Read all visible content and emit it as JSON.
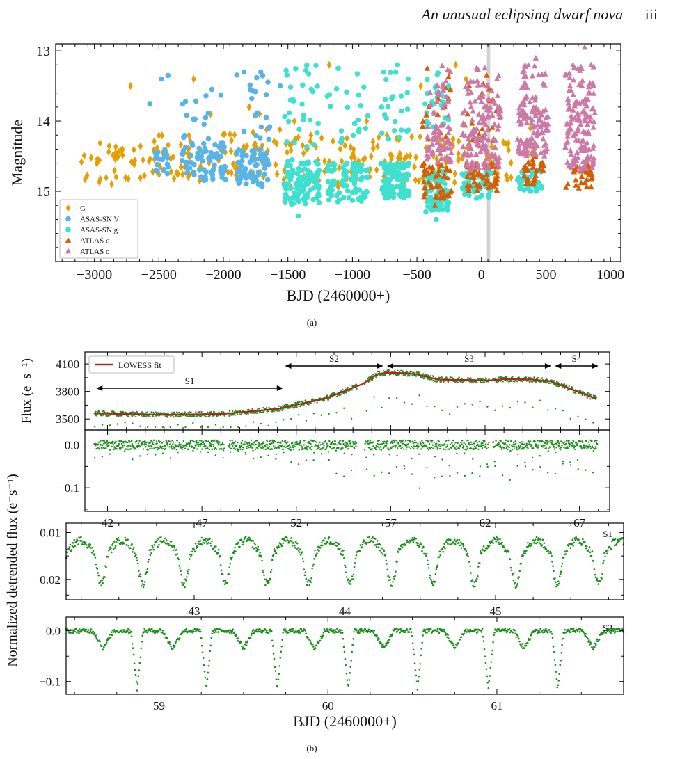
{
  "page_header": {
    "title": "An unusual eclipsing dwarf nova",
    "page_number": "iii"
  },
  "chart_data": [
    {
      "id": "a",
      "caption": "(a)",
      "type": "scatter",
      "xlabel": "BJD (2460000+)",
      "ylabel": "Magnitude",
      "xlim": [
        -3300,
        1080
      ],
      "ylim": [
        16.0,
        12.9
      ],
      "y_inverted": true,
      "xticks": [
        -3000,
        -2500,
        -2000,
        -1500,
        -1000,
        -500,
        0,
        500,
        1000
      ],
      "xtick_labels": [
        "−3000",
        "−2500",
        "−2000",
        "−1500",
        "−1000",
        "−500",
        "0",
        "500",
        "1000"
      ],
      "yticks": [
        13,
        14,
        15
      ],
      "ytick_labels": [
        "13",
        "14",
        "15"
      ],
      "shaded_band_x": [
        42,
        68
      ],
      "legend": {
        "placement": "bottom-left"
      },
      "series": [
        {
          "name": "G",
          "marker": "diamond",
          "color": "#e69f00",
          "groups": [
            {
              "x": [
                -3150,
                -2700
              ],
              "y": [
                14.3,
                14.9
              ],
              "n": 30
            },
            {
              "x": [
                -2700,
                -2050
              ],
              "y": [
                14.2,
                14.85
              ],
              "n": 50
            },
            {
              "x": [
                -2050,
                -1550
              ],
              "y": [
                14.1,
                14.8
              ],
              "n": 45
            },
            {
              "x": [
                -1550,
                -850
              ],
              "y": [
                14.2,
                14.95
              ],
              "n": 60
            },
            {
              "x": [
                -850,
                -150
              ],
              "y": [
                14.2,
                14.9
              ],
              "n": 55
            },
            {
              "x": [
                -150,
                450
              ],
              "y": [
                14.3,
                14.9
              ],
              "n": 30
            }
          ],
          "outliers": [
            [
              -2720,
              13.5
            ],
            [
              -2230,
              13.4
            ],
            [
              -2100,
              13.9
            ],
            [
              -1800,
              13.8
            ],
            [
              -1720,
              13.9
            ],
            [
              -1450,
              14.0
            ],
            [
              -1180,
              13.2
            ],
            [
              -890,
              14.0
            ],
            [
              -470,
              13.5
            ],
            [
              -250,
              13.3
            ],
            [
              -200,
              13.2
            ],
            [
              -120,
              13.4
            ],
            [
              380,
              14.1
            ]
          ]
        },
        {
          "name": "ASAS-SN V",
          "marker": "circle",
          "color": "#56b4e9",
          "groups": [
            {
              "x": [
                -2550,
                -2420
              ],
              "y": [
                14.4,
                14.75
              ],
              "n": 20
            },
            {
              "x": [
                -2320,
                -1980
              ],
              "y": [
                14.3,
                14.85
              ],
              "n": 70
            },
            {
              "x": [
                -2320,
                -1980
              ],
              "y": [
                13.5,
                14.3
              ],
              "n": 15
            },
            {
              "x": [
                -1900,
                -1640
              ],
              "y": [
                14.4,
                14.95
              ],
              "n": 70
            },
            {
              "x": [
                -1900,
                -1640
              ],
              "y": [
                13.3,
                14.3
              ],
              "n": 20
            }
          ],
          "outliers": [
            [
              -2570,
              13.75
            ],
            [
              -2480,
              13.4
            ],
            [
              -2430,
              13.35
            ],
            [
              -1840,
              13.3
            ],
            [
              -1710,
              13.3
            ],
            [
              -1560,
              13.5
            ]
          ]
        },
        {
          "name": "ASAS-SN g",
          "marker": "circle",
          "color": "#40e0d0",
          "groups": [
            {
              "x": [
                -1530,
                -1250
              ],
              "y": [
                14.55,
                15.2
              ],
              "n": 110
            },
            {
              "x": [
                -1530,
                -1250
              ],
              "y": [
                13.2,
                14.4
              ],
              "n": 30
            },
            {
              "x": [
                -1200,
                -880
              ],
              "y": [
                14.6,
                15.15
              ],
              "n": 90
            },
            {
              "x": [
                -1200,
                -880
              ],
              "y": [
                13.3,
                14.4
              ],
              "n": 20
            },
            {
              "x": [
                -780,
                -560
              ],
              "y": [
                14.6,
                15.1
              ],
              "n": 110
            },
            {
              "x": [
                -780,
                -560
              ],
              "y": [
                13.3,
                14.3
              ],
              "n": 25
            },
            {
              "x": [
                -440,
                -250
              ],
              "y": [
                14.7,
                15.3
              ],
              "n": 80
            },
            {
              "x": [
                -440,
                -250
              ],
              "y": [
                13.3,
                14.2
              ],
              "n": 25
            },
            {
              "x": [
                -150,
                100
              ],
              "y": [
                14.7,
                15.1
              ],
              "n": 60
            },
            {
              "x": [
                280,
                470
              ],
              "y": [
                14.7,
                15.0
              ],
              "n": 40
            }
          ],
          "outliers": [
            [
              -1420,
              15.35
            ],
            [
              -350,
              15.4
            ],
            [
              -650,
              13.2
            ],
            [
              -1110,
              13.25
            ]
          ]
        },
        {
          "name": "ATLAS c",
          "marker": "triangle",
          "color": "#d55e00",
          "groups": [
            {
              "x": [
                -460,
                -230
              ],
              "y": [
                14.6,
                15.1
              ],
              "n": 45
            },
            {
              "x": [
                -460,
                -230
              ],
              "y": [
                13.2,
                14.3
              ],
              "n": 15
            },
            {
              "x": [
                -130,
                130
              ],
              "y": [
                14.6,
                15.0
              ],
              "n": 55
            },
            {
              "x": [
                -130,
                130
              ],
              "y": [
                13.4,
                14.3
              ],
              "n": 20
            },
            {
              "x": [
                320,
                480
              ],
              "y": [
                14.5,
                14.9
              ],
              "n": 30
            },
            {
              "x": [
                650,
                860
              ],
              "y": [
                14.6,
                15.0
              ],
              "n": 30
            }
          ],
          "outliers": [
            [
              -420,
              13.25
            ],
            [
              -360,
              15.2
            ],
            [
              40,
              13.35
            ]
          ]
        },
        {
          "name": "ATLAS o",
          "marker": "triangle",
          "color": "#cc79a7",
          "groups": [
            {
              "x": [
                -430,
                -230
              ],
              "y": [
                14.0,
                14.6
              ],
              "n": 55
            },
            {
              "x": [
                -400,
                -250
              ],
              "y": [
                13.2,
                14.0
              ],
              "n": 20
            },
            {
              "x": [
                -150,
                150
              ],
              "y": [
                13.8,
                14.7
              ],
              "n": 110
            },
            {
              "x": [
                -130,
                140
              ],
              "y": [
                13.2,
                13.8
              ],
              "n": 30
            },
            {
              "x": [
                280,
                520
              ],
              "y": [
                13.8,
                14.5
              ],
              "n": 100
            },
            {
              "x": [
                300,
                500
              ],
              "y": [
                13.1,
                13.8
              ],
              "n": 30
            },
            {
              "x": [
                650,
                880
              ],
              "y": [
                13.7,
                14.7
              ],
              "n": 110
            },
            {
              "x": [
                650,
                870
              ],
              "y": [
                13.2,
                13.7
              ],
              "n": 30
            }
          ],
          "outliers": [
            [
              800,
              12.95
            ],
            [
              850,
              13.2
            ],
            [
              -240,
              13.3
            ],
            [
              120,
              13.4
            ]
          ]
        }
      ]
    },
    {
      "id": "b",
      "caption": "(b)",
      "type": "scatter",
      "xlabel": "BJD (2460000+)",
      "ylabel_top": "Flux (e⁻s⁻¹)",
      "ylabel_shared": "Normalized detrended flux  (e⁻s⁻¹)",
      "panels": [
        {
          "name": "raw-flux",
          "xlim": [
            40.8,
            68.6
          ],
          "ylim": [
            3380,
            4230
          ],
          "yticks": [
            3500,
            3800,
            4100
          ],
          "ytick_labels": [
            "3500",
            "3800",
            "4100"
          ],
          "legend": {
            "label": "LOWESS fit",
            "color": "#b22222",
            "placement": "top-left"
          },
          "lowess_fit": {
            "x": [
              41.3,
              45.0,
              48.2,
              51.0,
              53.5,
              55.5,
              56.3,
              56.8,
              57.6,
              58.3,
              59.5,
              61.0,
              62.2,
              63.0,
              64.5,
              65.5,
              66.5,
              67.9
            ],
            "y": [
              3560,
              3545,
              3555,
              3610,
              3720,
              3880,
              3990,
              4005,
              4000,
              3990,
              3930,
              3925,
              3920,
              3935,
              3930,
              3910,
              3830,
              3720
            ]
          },
          "eclipse_depth_scale": [
            0.5,
            1.0
          ],
          "eclipse_period_days": 0.4,
          "gaps": [
            [
              48.2,
              48.4
            ],
            [
              55.2,
              55.6
            ],
            [
              62.2,
              62.4
            ]
          ],
          "segments": [
            {
              "label": "S1",
              "x": [
                41.4,
                51.3
              ]
            },
            {
              "label": "S2",
              "x": [
                51.4,
                56.6
              ]
            },
            {
              "label": "S3",
              "x": [
                56.8,
                65.5
              ]
            },
            {
              "label": "S4",
              "x": [
                65.7,
                68.0
              ]
            }
          ]
        },
        {
          "name": "detrended-flux",
          "xlim": [
            40.8,
            68.6
          ],
          "ylim": [
            -0.155,
            0.035
          ],
          "yticks": [
            0.0,
            -0.1
          ],
          "ytick_labels": [
            "0.0",
            "−0.1"
          ],
          "xticks": [
            42,
            47,
            52,
            57,
            62,
            67
          ],
          "xtick_labels": [
            "42",
            "47",
            "52",
            "57",
            "62",
            "67"
          ],
          "eclipse_depth": {
            "x": [
              41.3,
              48.0,
              51.0,
              53.0,
              55.5,
              56.8,
              58.5,
              61.0,
              63.5,
              66.0,
              67.9
            ],
            "y": [
              -0.03,
              -0.035,
              -0.04,
              -0.06,
              -0.1,
              -0.13,
              -0.12,
              -0.11,
              -0.1,
              -0.1,
              -0.085
            ]
          },
          "gaps": [
            [
              48.2,
              48.4
            ],
            [
              55.2,
              55.6
            ],
            [
              62.2,
              62.4
            ]
          ]
        },
        {
          "name": "zoom-S1",
          "label": "S1",
          "xlim": [
            42.15,
            45.85
          ],
          "ylim": [
            -0.033,
            0.016
          ],
          "yticks": [
            0.01,
            -0.02
          ],
          "ytick_labels": [
            "0.01",
            "−0.02"
          ],
          "xticks": [
            43,
            44,
            45
          ],
          "xtick_labels": [
            "43",
            "44",
            "45"
          ],
          "period_days": 0.275,
          "baseline": 0.0,
          "hump_amplitude": 0.009,
          "dip_depth": -0.021
        },
        {
          "name": "zoom-S3",
          "label": "S3",
          "xlim": [
            58.45,
            61.75
          ],
          "ylim": [
            -0.125,
            0.027
          ],
          "yticks": [
            0.0,
            -0.1
          ],
          "ytick_labels": [
            "0.0",
            "−0.1"
          ],
          "xticks": [
            59,
            60,
            61
          ],
          "xtick_labels": [
            "59",
            "60",
            "61"
          ],
          "primary_eclipses_x": [
            58.87,
            59.28,
            59.7,
            60.12,
            60.53,
            60.95,
            61.36
          ],
          "primary_depth": -0.115,
          "secondary_depth": -0.035
        }
      ]
    }
  ]
}
